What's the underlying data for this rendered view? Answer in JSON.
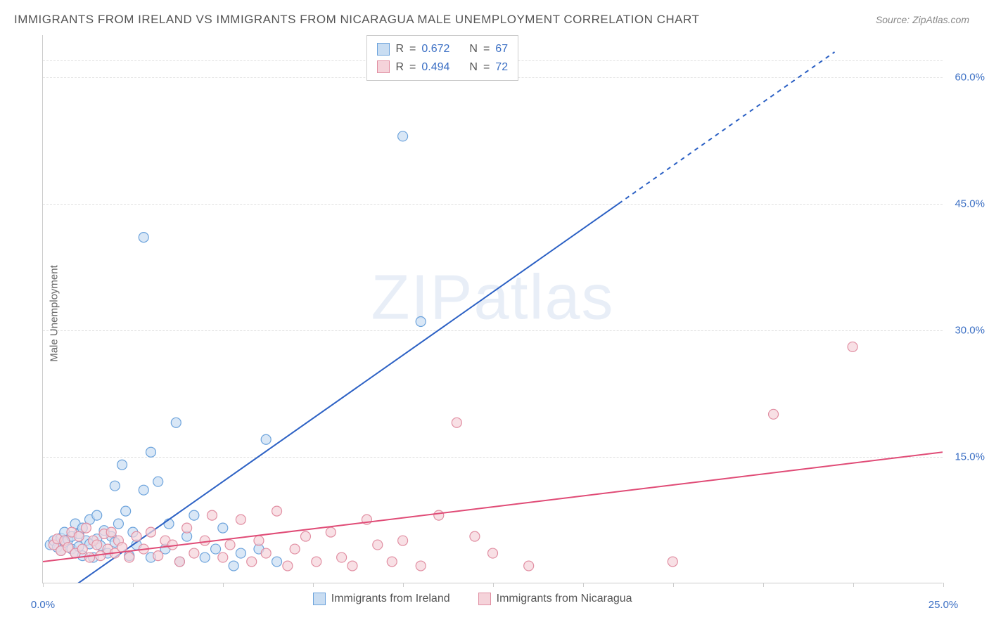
{
  "title": "IMMIGRANTS FROM IRELAND VS IMMIGRANTS FROM NICARAGUA MALE UNEMPLOYMENT CORRELATION CHART",
  "source": "Source: ZipAtlas.com",
  "y_axis_label": "Male Unemployment",
  "watermark": "ZIPatlas",
  "chart": {
    "type": "scatter",
    "xlim": [
      0,
      25
    ],
    "ylim": [
      0,
      65
    ],
    "x_ticks": [
      0,
      2.5,
      5,
      7.5,
      10,
      12.5,
      15,
      17.5,
      20,
      22.5,
      25
    ],
    "x_tick_labels": {
      "0": "0.0%",
      "25": "25.0%"
    },
    "y_ticks": [
      15,
      30,
      45,
      60
    ],
    "y_tick_labels": [
      "15.0%",
      "30.0%",
      "45.0%",
      "60.0%"
    ],
    "background_color": "#ffffff",
    "grid_color": "#e0e0e0",
    "marker_radius": 7,
    "marker_stroke_width": 1.2,
    "line_width": 2,
    "series": [
      {
        "name": "Immigrants from Ireland",
        "color_fill": "#c9ddf2",
        "color_stroke": "#6ca3dc",
        "line_color": "#2b60c4",
        "R": 0.672,
        "N": 67,
        "regression": {
          "x1": 0,
          "y1": -3,
          "x2": 16,
          "y2": 45,
          "x3": 22,
          "y3": 63,
          "dash_from_x": 16
        },
        "points": [
          [
            0.2,
            4.5
          ],
          [
            0.3,
            5.0
          ],
          [
            0.4,
            4.2
          ],
          [
            0.5,
            5.3
          ],
          [
            0.5,
            3.8
          ],
          [
            0.6,
            4.8
          ],
          [
            0.6,
            6.0
          ],
          [
            0.7,
            5.1
          ],
          [
            0.8,
            4.0
          ],
          [
            0.8,
            5.5
          ],
          [
            0.9,
            7.0
          ],
          [
            0.9,
            3.5
          ],
          [
            1.0,
            5.8
          ],
          [
            1.0,
            4.3
          ],
          [
            1.1,
            3.2
          ],
          [
            1.1,
            6.5
          ],
          [
            1.2,
            5.0
          ],
          [
            1.3,
            4.6
          ],
          [
            1.3,
            7.5
          ],
          [
            1.4,
            3.0
          ],
          [
            1.5,
            5.2
          ],
          [
            1.5,
            8.0
          ],
          [
            1.6,
            4.4
          ],
          [
            1.7,
            6.2
          ],
          [
            1.8,
            3.5
          ],
          [
            1.9,
            5.5
          ],
          [
            2.0,
            11.5
          ],
          [
            2.0,
            4.8
          ],
          [
            2.1,
            7.0
          ],
          [
            2.2,
            14.0
          ],
          [
            2.3,
            8.5
          ],
          [
            2.4,
            3.2
          ],
          [
            2.5,
            6.0
          ],
          [
            2.6,
            4.5
          ],
          [
            2.8,
            41.0
          ],
          [
            2.8,
            11.0
          ],
          [
            3.0,
            3.0
          ],
          [
            3.0,
            15.5
          ],
          [
            3.2,
            12.0
          ],
          [
            3.4,
            4.0
          ],
          [
            3.5,
            7.0
          ],
          [
            3.7,
            19.0
          ],
          [
            3.8,
            2.5
          ],
          [
            4.0,
            5.5
          ],
          [
            4.2,
            8.0
          ],
          [
            4.5,
            3.0
          ],
          [
            4.8,
            4.0
          ],
          [
            5.0,
            6.5
          ],
          [
            5.3,
            2.0
          ],
          [
            5.5,
            3.5
          ],
          [
            6.0,
            4.0
          ],
          [
            6.2,
            17.0
          ],
          [
            6.5,
            2.5
          ],
          [
            10.0,
            53.0
          ],
          [
            10.5,
            31.0
          ]
        ]
      },
      {
        "name": "Immigrants from Nicaragua",
        "color_fill": "#f5d3da",
        "color_stroke": "#e18ea2",
        "line_color": "#e04b76",
        "R": 0.494,
        "N": 72,
        "regression": {
          "x1": 0,
          "y1": 2.5,
          "x2": 25,
          "y2": 15.5
        },
        "points": [
          [
            0.3,
            4.5
          ],
          [
            0.4,
            5.2
          ],
          [
            0.5,
            3.8
          ],
          [
            0.6,
            5.0
          ],
          [
            0.7,
            4.2
          ],
          [
            0.8,
            6.0
          ],
          [
            0.9,
            3.5
          ],
          [
            1.0,
            5.5
          ],
          [
            1.1,
            4.0
          ],
          [
            1.2,
            6.5
          ],
          [
            1.3,
            3.0
          ],
          [
            1.4,
            5.0
          ],
          [
            1.5,
            4.5
          ],
          [
            1.6,
            3.2
          ],
          [
            1.7,
            5.8
          ],
          [
            1.8,
            4.0
          ],
          [
            1.9,
            6.0
          ],
          [
            2.0,
            3.5
          ],
          [
            2.1,
            5.0
          ],
          [
            2.2,
            4.2
          ],
          [
            2.4,
            3.0
          ],
          [
            2.6,
            5.5
          ],
          [
            2.8,
            4.0
          ],
          [
            3.0,
            6.0
          ],
          [
            3.2,
            3.2
          ],
          [
            3.4,
            5.0
          ],
          [
            3.6,
            4.5
          ],
          [
            3.8,
            2.5
          ],
          [
            4.0,
            6.5
          ],
          [
            4.2,
            3.5
          ],
          [
            4.5,
            5.0
          ],
          [
            4.7,
            8.0
          ],
          [
            5.0,
            3.0
          ],
          [
            5.2,
            4.5
          ],
          [
            5.5,
            7.5
          ],
          [
            5.8,
            2.5
          ],
          [
            6.0,
            5.0
          ],
          [
            6.2,
            3.5
          ],
          [
            6.5,
            8.5
          ],
          [
            6.8,
            2.0
          ],
          [
            7.0,
            4.0
          ],
          [
            7.3,
            5.5
          ],
          [
            7.6,
            2.5
          ],
          [
            8.0,
            6.0
          ],
          [
            8.3,
            3.0
          ],
          [
            8.6,
            2.0
          ],
          [
            9.0,
            7.5
          ],
          [
            9.3,
            4.5
          ],
          [
            9.7,
            2.5
          ],
          [
            10.0,
            5.0
          ],
          [
            10.5,
            2.0
          ],
          [
            11.0,
            8.0
          ],
          [
            11.5,
            19.0
          ],
          [
            12.0,
            5.5
          ],
          [
            12.5,
            3.5
          ],
          [
            13.5,
            2.0
          ],
          [
            17.5,
            2.5
          ],
          [
            20.3,
            20.0
          ],
          [
            22.5,
            28.0
          ]
        ]
      }
    ]
  },
  "legend_labels": {
    "R": "R",
    "N": "N",
    "eq": "="
  },
  "bottom_legend": [
    "Immigrants from Ireland",
    "Immigrants from Nicaragua"
  ]
}
